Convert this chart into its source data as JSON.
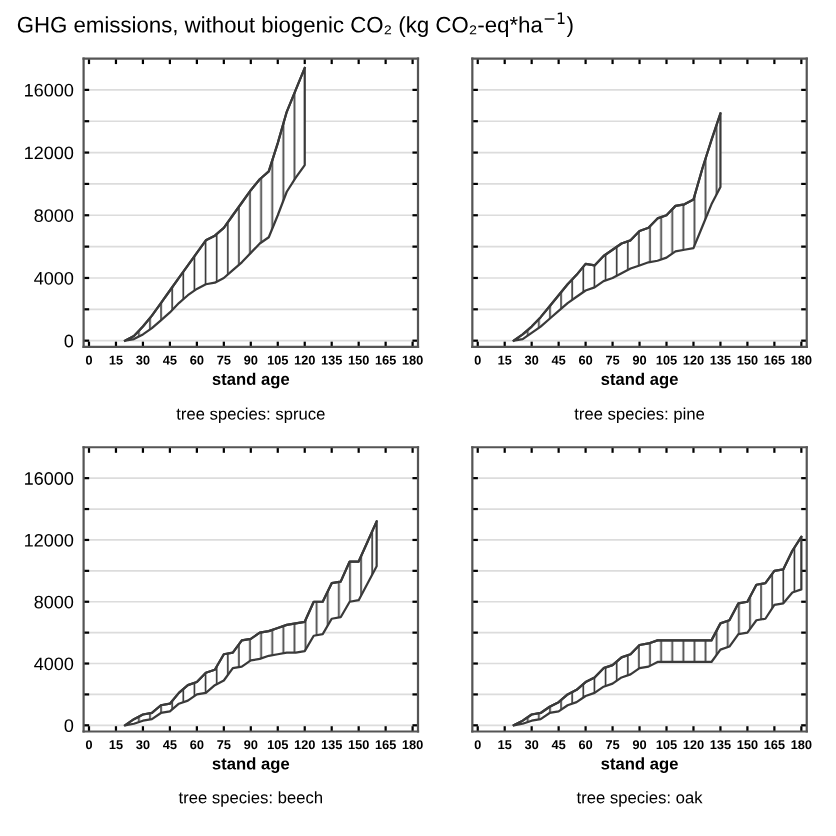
{
  "chart_data": [
    {
      "type": "line",
      "title": "GHG emissions, without biogenic CO₂ (kg CO₂-eq*ha$^{−1}$)",
      "xlabel": "stand age",
      "annotations": [
        "tree species: spruce"
      ],
      "xlim": [
        -3,
        183
      ],
      "ylim": [
        -400,
        18000
      ],
      "xticks": [
        0,
        15,
        30,
        45,
        60,
        75,
        90,
        105,
        120,
        135,
        150,
        165,
        180
      ],
      "yticks": [
        0,
        {
          "value": 2000,
          "label": null
        },
        4000,
        {
          "value": 6000,
          "label": null
        },
        8000,
        {
          "value": 10000,
          "label": null
        },
        12000,
        {
          "value": 14000,
          "label": null
        },
        16000
      ],
      "grid": "y",
      "x": [
        20,
        25,
        30,
        35,
        40,
        45,
        50,
        55,
        60,
        65,
        70,
        75,
        80,
        85,
        90,
        95,
        100,
        105,
        110,
        115,
        120
      ],
      "series": [
        {
          "color": "#3a3a3a",
          "values": [
            0,
            300,
            900,
            1600,
            2400,
            3200,
            4000,
            4800,
            5600,
            6400,
            6700,
            7200,
            8000,
            8800,
            9600,
            10300,
            10800,
            12600,
            14600,
            16000,
            17400
          ],
          "upper": [
            0,
            300,
            900,
            1600,
            2400,
            3200,
            4000,
            4800,
            5600,
            6400,
            6700,
            7200,
            8000,
            8800,
            9600,
            10300,
            10800,
            12600,
            14600,
            16000,
            17400
          ],
          "lower": [
            0,
            100,
            400,
            800,
            1300,
            1800,
            2400,
            2900,
            3300,
            3600,
            3700,
            4000,
            4500,
            5000,
            5600,
            6200,
            6600,
            8000,
            9500,
            10400,
            11200
          ]
        }
      ]
    },
    {
      "type": "line",
      "xlabel": "stand age",
      "annotations": [
        "tree species: pine"
      ],
      "xlim": [
        -3,
        183
      ],
      "ylim": [
        -400,
        18000
      ],
      "xticks": [
        0,
        15,
        30,
        45,
        60,
        75,
        90,
        105,
        120,
        135,
        150,
        165,
        180
      ],
      "yticks": [
        0,
        {
          "value": 2000,
          "label": null
        },
        4000,
        {
          "value": 6000,
          "label": null
        },
        8000,
        {
          "value": 10000,
          "label": null
        },
        12000,
        {
          "value": 14000,
          "label": null
        },
        16000
      ],
      "grid": "y",
      "tick_labels": "x",
      "x": [
        20,
        25,
        30,
        35,
        40,
        45,
        50,
        55,
        60,
        65,
        70,
        75,
        80,
        85,
        90,
        95,
        100,
        105,
        110,
        115,
        120,
        125,
        130,
        135
      ],
      "series": [
        {
          "color": "#3a3a3a",
          "values": [
            0,
            400,
            900,
            1500,
            2200,
            2900,
            3600,
            4200,
            4900,
            4800,
            5400,
            5800,
            6200,
            6400,
            7000,
            7200,
            7800,
            8000,
            8600,
            8700,
            9000,
            11000,
            12800,
            14500
          ],
          "upper": [
            0,
            400,
            900,
            1500,
            2200,
            2900,
            3600,
            4200,
            4900,
            4800,
            5400,
            5800,
            6200,
            6400,
            7000,
            7200,
            7800,
            8000,
            8600,
            8700,
            9000,
            11000,
            12800,
            14500
          ],
          "lower": [
            0,
            100,
            500,
            900,
            1400,
            1900,
            2400,
            2800,
            3200,
            3400,
            3800,
            4000,
            4300,
            4600,
            4800,
            5000,
            5100,
            5300,
            5700,
            5800,
            5900,
            7300,
            8700,
            9800
          ]
        }
      ]
    },
    {
      "type": "line",
      "xlabel": "stand age",
      "annotations": [
        "tree species: beech"
      ],
      "xlim": [
        -3,
        183
      ],
      "ylim": [
        -400,
        18000
      ],
      "xticks": [
        0,
        15,
        30,
        45,
        60,
        75,
        90,
        105,
        120,
        135,
        150,
        165,
        180
      ],
      "yticks": [
        0,
        {
          "value": 2000,
          "label": null
        },
        4000,
        {
          "value": 6000,
          "label": null
        },
        8000,
        {
          "value": 10000,
          "label": null
        },
        12000,
        {
          "value": 14000,
          "label": null
        },
        16000
      ],
      "grid": "y",
      "x": [
        20,
        25,
        30,
        35,
        40,
        45,
        50,
        55,
        60,
        65,
        70,
        75,
        80,
        85,
        90,
        95,
        100,
        105,
        110,
        115,
        120,
        125,
        130,
        135,
        140,
        145,
        150,
        155,
        160
      ],
      "series": [
        {
          "color": "#3a3a3a",
          "values": [
            0,
            400,
            700,
            800,
            1300,
            1400,
            2100,
            2600,
            2800,
            3400,
            3600,
            4600,
            4700,
            5500,
            5600,
            6000,
            6100,
            6300,
            6500,
            6600,
            6700,
            8000,
            8000,
            9200,
            9300,
            10600,
            10600,
            11900,
            13200
          ],
          "upper": [
            0,
            400,
            700,
            800,
            1300,
            1400,
            2100,
            2600,
            2800,
            3400,
            3600,
            4600,
            4700,
            5500,
            5600,
            6000,
            6100,
            6300,
            6500,
            6600,
            6700,
            8000,
            8000,
            9200,
            9300,
            10600,
            10600,
            11900,
            13200
          ],
          "lower": [
            0,
            100,
            300,
            400,
            800,
            900,
            1400,
            1600,
            2000,
            2100,
            2600,
            2900,
            3700,
            3800,
            4200,
            4300,
            4500,
            4600,
            4700,
            4700,
            4800,
            5800,
            5900,
            6900,
            7000,
            8000,
            8100,
            9200,
            10300
          ]
        }
      ]
    },
    {
      "type": "line",
      "xlabel": "stand age",
      "annotations": [
        "tree species: oak"
      ],
      "xlim": [
        -3,
        183
      ],
      "ylim": [
        -400,
        18000
      ],
      "xticks": [
        0,
        15,
        30,
        45,
        60,
        75,
        90,
        105,
        120,
        135,
        150,
        165,
        180
      ],
      "yticks": [
        0,
        {
          "value": 2000,
          "label": null
        },
        4000,
        {
          "value": 6000,
          "label": null
        },
        8000,
        {
          "value": 10000,
          "label": null
        },
        12000,
        {
          "value": 14000,
          "label": null
        },
        16000
      ],
      "grid": "y",
      "tick_labels": "x",
      "x": [
        20,
        25,
        30,
        35,
        40,
        45,
        50,
        55,
        60,
        65,
        70,
        75,
        80,
        85,
        90,
        95,
        100,
        105,
        110,
        115,
        120,
        125,
        130,
        135,
        140,
        145,
        150,
        155,
        160,
        165,
        170,
        175,
        180
      ],
      "series": [
        {
          "color": "#3a3a3a",
          "values": [
            0,
            300,
            700,
            800,
            1200,
            1500,
            2000,
            2300,
            2800,
            3100,
            3700,
            3900,
            4400,
            4600,
            5200,
            5300,
            5500,
            5500,
            5500,
            5500,
            5500,
            5500,
            5500,
            6600,
            6800,
            7900,
            8000,
            9100,
            9200,
            10000,
            10100,
            11300,
            12200
          ],
          "upper": [
            0,
            300,
            700,
            800,
            1200,
            1500,
            2000,
            2300,
            2800,
            3100,
            3700,
            3900,
            4400,
            4600,
            5200,
            5300,
            5500,
            5500,
            5500,
            5500,
            5500,
            5500,
            5500,
            6600,
            6800,
            7900,
            8000,
            9100,
            9200,
            10000,
            10100,
            11300,
            12200
          ],
          "lower": [
            0,
            100,
            300,
            400,
            800,
            900,
            1300,
            1500,
            1900,
            2100,
            2500,
            2700,
            3100,
            3300,
            3700,
            3800,
            4100,
            4100,
            4100,
            4100,
            4100,
            4100,
            4100,
            4900,
            5100,
            5900,
            6000,
            6800,
            6900,
            7800,
            7900,
            8600,
            8800
          ]
        }
      ]
    }
  ]
}
